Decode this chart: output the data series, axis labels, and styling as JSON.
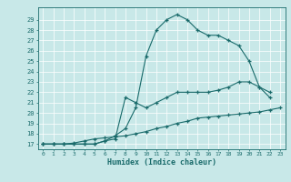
{
  "xlabel": "Humidex (Indice chaleur)",
  "xlim": [
    -0.5,
    23.5
  ],
  "ylim": [
    16.5,
    30.2
  ],
  "yticks": [
    17,
    18,
    19,
    20,
    21,
    22,
    23,
    24,
    25,
    26,
    27,
    28,
    29
  ],
  "xticks": [
    0,
    1,
    2,
    3,
    4,
    5,
    6,
    7,
    8,
    9,
    10,
    11,
    12,
    13,
    14,
    15,
    16,
    17,
    18,
    19,
    20,
    21,
    22,
    23
  ],
  "bg_color": "#c8e8e8",
  "line_color": "#1a6b6b",
  "curve1_x": [
    0,
    1,
    2,
    3,
    4,
    5,
    6,
    7,
    8,
    9,
    10,
    11,
    12,
    13,
    14,
    15,
    16,
    17,
    18,
    19,
    20,
    21,
    22
  ],
  "curve1_y": [
    17,
    17,
    17,
    17,
    17,
    17,
    17.3,
    17.8,
    18.5,
    20.5,
    25.5,
    28,
    29,
    29.5,
    29,
    28,
    27.5,
    27.5,
    27,
    26.5,
    25,
    22.5,
    21.5
  ],
  "curve2_x": [
    0,
    1,
    2,
    3,
    4,
    5,
    6,
    7,
    8,
    9,
    10,
    11,
    12,
    13,
    14,
    15,
    16,
    17,
    18,
    19,
    20,
    21,
    22
  ],
  "curve2_y": [
    17,
    17,
    17,
    17,
    17,
    17,
    17.3,
    17.5,
    21.5,
    21,
    20.5,
    21,
    21.5,
    22,
    22,
    22,
    22,
    22.2,
    22.5,
    23,
    23,
    22.5,
    22
  ],
  "curve3_x": [
    0,
    1,
    2,
    3,
    4,
    5,
    6,
    7,
    8,
    9,
    10,
    11,
    12,
    13,
    14,
    15,
    16,
    17,
    18,
    19,
    20,
    21,
    22,
    23
  ],
  "curve3_y": [
    17,
    17,
    17,
    17.1,
    17.3,
    17.5,
    17.6,
    17.7,
    17.8,
    18.0,
    18.2,
    18.5,
    18.7,
    19.0,
    19.2,
    19.5,
    19.6,
    19.7,
    19.8,
    19.9,
    20.0,
    20.1,
    20.3,
    20.5
  ]
}
